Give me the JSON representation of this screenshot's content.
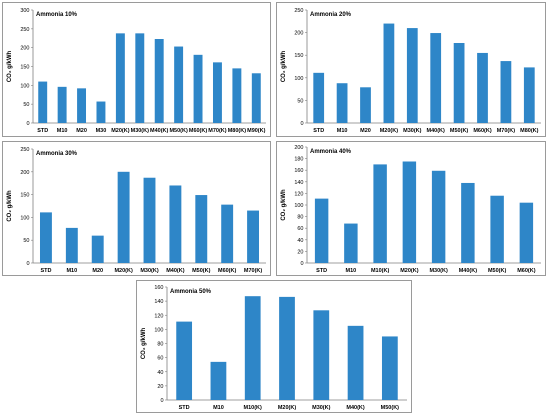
{
  "colors": {
    "bar": "#2e86c8",
    "axis": "#7f7f7f",
    "frame": "#9a9a9a"
  },
  "chart_data": [
    {
      "type": "bar",
      "title": "Ammonia 10%",
      "ylabel": "CO₂ g/kWh",
      "ylim": [
        0,
        300
      ],
      "yticks": [
        0,
        50,
        100,
        150,
        200,
        250,
        300
      ],
      "categories": [
        "STD",
        "M10",
        "M20",
        "M30",
        "M20(K)",
        "M30(K)",
        "M40(K)",
        "M50(K)",
        "M60(K)",
        "M70(K)",
        "M80(K)",
        "M90(K)"
      ],
      "values": [
        110,
        96,
        92,
        57,
        238,
        238,
        223,
        203,
        181,
        161,
        145,
        132
      ]
    },
    {
      "type": "bar",
      "title": "Ammonia 20%",
      "ylabel": "CO₂ g/kWh",
      "ylim": [
        0,
        250
      ],
      "yticks": [
        0,
        50,
        100,
        150,
        200,
        250
      ],
      "categories": [
        "STD",
        "M10",
        "M20",
        "M20(K)",
        "M30(K)",
        "M40(K)",
        "M50(K)",
        "M60(K)",
        "M70(K)",
        "M80(K)"
      ],
      "values": [
        111,
        88,
        79,
        220,
        210,
        199,
        177,
        155,
        137,
        123
      ]
    },
    {
      "type": "bar",
      "title": "Ammonia 30%",
      "ylabel": "CO₂ g/kWh",
      "ylim": [
        0,
        250
      ],
      "yticks": [
        0,
        50,
        100,
        150,
        200,
        250
      ],
      "categories": [
        "STD",
        "M10",
        "M20",
        "M20(K)",
        "M30(K)",
        "M40(K)",
        "M50(K)",
        "M60(K)",
        "M70(K)"
      ],
      "values": [
        111,
        77,
        60,
        200,
        187,
        170,
        149,
        128,
        115
      ]
    },
    {
      "type": "bar",
      "title": "Ammonia 40%",
      "ylabel": "CO₂ g/kWh",
      "ylim": [
        0,
        200
      ],
      "yticks": [
        0,
        20,
        40,
        60,
        80,
        100,
        120,
        140,
        160,
        180,
        200
      ],
      "categories": [
        "STD",
        "M10",
        "M10(K)",
        "M20(K)",
        "M30(K)",
        "M40(K)",
        "M50(K)",
        "M60(K)"
      ],
      "values": [
        111,
        68,
        170,
        175,
        159,
        138,
        116,
        104
      ]
    },
    {
      "type": "bar",
      "title": "Ammonia 50%",
      "ylabel": "CO₂ g/kWh",
      "ylim": [
        0,
        160
      ],
      "yticks": [
        0,
        20,
        40,
        60,
        80,
        100,
        120,
        140,
        160
      ],
      "categories": [
        "STD",
        "M10",
        "M10(K)",
        "M20(K)",
        "M30(K)",
        "M40(K)",
        "M50(K)"
      ],
      "values": [
        111,
        54,
        147,
        146,
        127,
        105,
        90
      ]
    }
  ]
}
